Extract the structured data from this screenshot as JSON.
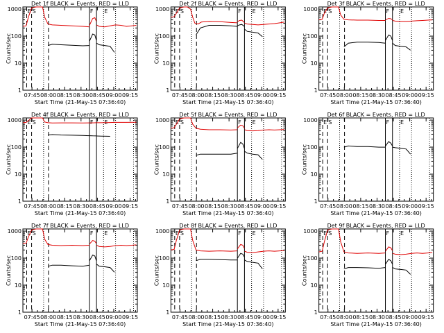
{
  "colors": {
    "events": "#000000",
    "lld": "#e00000",
    "axes": "#000000"
  },
  "common": {
    "xlabel": "Start Time (21-May-15 07:36:40)",
    "ylabel": "Counts/sec",
    "xticks": [
      "07:45",
      "08:00",
      "08:15",
      "08:30",
      "08:45",
      "09:00",
      "09:15"
    ],
    "yticks": [
      "1",
      "10",
      "100",
      "1000"
    ],
    "yscale": "log",
    "ylim": [
      1,
      1200
    ],
    "xlim_minutes_after_0736": [
      0,
      105
    ],
    "markers": [
      {
        "label": "E",
        "minute": 3.5,
        "style": "dashed"
      },
      {
        "label": "S",
        "minute": 8.0,
        "style": "dashed"
      },
      {
        "label": "",
        "minute": 19.0,
        "style": "dotted"
      },
      {
        "label": "",
        "minute": 23.5,
        "style": "dashed"
      },
      {
        "label": "F",
        "minute": 61.0,
        "style": "solid"
      },
      {
        "label": "",
        "minute": 67.5,
        "style": "solid"
      },
      {
        "label": "E",
        "minute": 74.0,
        "style": "dotted"
      },
      {
        "label": "",
        "minute": 85.0,
        "style": "dotted"
      },
      {
        "label": "",
        "minute": 101.5,
        "style": "dotted"
      }
    ]
  },
  "chart_data": [
    {
      "type": "line",
      "title": "Det 1f BLACK = Events, RED = LLD",
      "series": [
        {
          "name": "Events",
          "x": [
            20.5,
            23,
            27,
            35,
            45,
            55,
            60.9
          ],
          "y": [
            null,
            45,
            50,
            48,
            46,
            44,
            45
          ]
        },
        {
          "name": "Events",
          "x": [
            61.1,
            64,
            66,
            67.4
          ],
          "y": [
            65,
            120,
            110,
            70
          ]
        },
        {
          "name": "Events",
          "x": [
            67.6,
            70,
            75,
            80,
            84
          ],
          "y": [
            55,
            48,
            45,
            42,
            25
          ]
        },
        {
          "name": "LLD",
          "x": [
            0,
            3,
            5,
            8,
            12,
            15,
            18,
            20,
            23,
            27,
            35,
            45,
            55,
            60.9
          ],
          "y": [
            230,
            240,
            500,
            1100,
            1200,
            1200,
            1200,
            500,
            280,
            260,
            250,
            240,
            230,
            220
          ]
        },
        {
          "name": "LLD",
          "x": [
            61.1,
            64,
            66,
            67.4
          ],
          "y": [
            250,
            450,
            480,
            350
          ]
        },
        {
          "name": "LLD",
          "x": [
            67.6,
            70,
            75,
            80,
            85,
            90,
            95,
            100,
            104
          ],
          "y": [
            260,
            230,
            220,
            240,
            260,
            250,
            230,
            240,
            250
          ]
        }
      ]
    },
    {
      "type": "line",
      "title": "Det 2f BLACK = Events, RED = LLD",
      "series": [
        {
          "name": "Events",
          "x": [
            20,
            23,
            27,
            35,
            45,
            55,
            60.9
          ],
          "y": [
            null,
            110,
            200,
            250,
            250,
            240,
            230
          ]
        },
        {
          "name": "Events",
          "x": [
            61.1,
            63,
            65,
            67.4
          ],
          "y": [
            240,
            260,
            270,
            230
          ]
        },
        {
          "name": "Events",
          "x": [
            67.6,
            70,
            75,
            80,
            84
          ],
          "y": [
            180,
            150,
            140,
            130,
            95
          ]
        },
        {
          "name": "LLD",
          "x": [
            0,
            3,
            5,
            8,
            12,
            15,
            18,
            20,
            22,
            25,
            28,
            35,
            45,
            55,
            60.9
          ],
          "y": [
            500,
            520,
            700,
            1100,
            1200,
            1200,
            1000,
            500,
            300,
            280,
            330,
            350,
            340,
            320,
            310
          ]
        },
        {
          "name": "LLD",
          "x": [
            61.1,
            63,
            65,
            67.4
          ],
          "y": [
            340,
            380,
            390,
            320
          ]
        },
        {
          "name": "LLD",
          "x": [
            67.6,
            70,
            75,
            80,
            85,
            90,
            95,
            100,
            104
          ],
          "y": [
            300,
            280,
            270,
            260,
            270,
            280,
            290,
            310,
            330
          ]
        }
      ]
    },
    {
      "type": "line",
      "title": "Det 3f BLACK = Events, RED = LLD",
      "series": [
        {
          "name": "Events",
          "x": [
            21,
            23,
            27,
            35,
            45,
            55,
            60.9
          ],
          "y": [
            null,
            40,
            55,
            60,
            60,
            58,
            55
          ]
        },
        {
          "name": "Events",
          "x": [
            61.1,
            64,
            66,
            67.4
          ],
          "y": [
            70,
            110,
            100,
            70
          ]
        },
        {
          "name": "Events",
          "x": [
            67.6,
            70,
            75,
            80,
            84
          ],
          "y": [
            55,
            45,
            42,
            40,
            30
          ]
        },
        {
          "name": "LLD",
          "x": [
            0,
            3,
            5,
            8,
            12,
            15,
            18,
            20,
            23,
            27,
            35,
            45,
            55,
            60.9
          ],
          "y": [
            400,
            420,
            700,
            1100,
            1200,
            1200,
            1200,
            600,
            420,
            400,
            390,
            390,
            380,
            380
          ]
        },
        {
          "name": "LLD",
          "x": [
            61.1,
            64,
            66,
            67.4
          ],
          "y": [
            400,
            450,
            440,
            400
          ]
        },
        {
          "name": "LLD",
          "x": [
            67.6,
            70,
            75,
            80,
            85,
            90,
            95,
            100,
            104
          ],
          "y": [
            380,
            360,
            350,
            350,
            360,
            370,
            380,
            390,
            400
          ]
        }
      ]
    },
    {
      "type": "line",
      "title": "Det 4f BLACK = Events, RED = LLD",
      "series": [
        {
          "name": "Events",
          "x": [
            21,
            23,
            27,
            35,
            45,
            55,
            60.9
          ],
          "y": [
            null,
            280,
            290,
            280,
            275,
            270,
            265
          ]
        },
        {
          "name": "Events",
          "x": [
            61.1,
            64,
            67.4
          ],
          "y": [
            265,
            262,
            260
          ]
        },
        {
          "name": "Events",
          "x": [
            67.6,
            72,
            77,
            80
          ],
          "y": [
            258,
            255,
            252,
            250
          ]
        },
        {
          "name": "LLD",
          "x": [
            0,
            3,
            5,
            8,
            12,
            15,
            18,
            20,
            23,
            27,
            35,
            45,
            55,
            60.9
          ],
          "y": [
            800,
            820,
            950,
            1200,
            1200,
            1200,
            1200,
            850,
            800,
            780,
            790,
            790,
            780,
            790
          ]
        },
        {
          "name": "LLD",
          "x": [
            61.1,
            64,
            67.4
          ],
          "y": [
            790,
            790,
            800
          ]
        },
        {
          "name": "LLD",
          "x": [
            67.6,
            72,
            77,
            85,
            95,
            104
          ],
          "y": [
            800,
            800,
            810,
            820,
            820,
            830
          ]
        }
      ]
    },
    {
      "type": "line",
      "title": "Det 5f BLACK = Events, RED = LLD",
      "series": [
        {
          "name": "Events",
          "x": [
            21,
            23,
            27,
            35,
            45,
            55,
            60.9
          ],
          "y": [
            null,
            50,
            55,
            55,
            55,
            55,
            60
          ]
        },
        {
          "name": "Events",
          "x": [
            61.1,
            64,
            66,
            67.4
          ],
          "y": [
            90,
            150,
            130,
            90
          ]
        },
        {
          "name": "Events",
          "x": [
            67.6,
            70,
            75,
            80,
            84
          ],
          "y": [
            70,
            60,
            55,
            52,
            35
          ]
        },
        {
          "name": "LLD",
          "x": [
            0,
            3,
            5,
            8,
            12,
            15,
            18,
            20,
            23,
            27,
            35,
            45,
            55,
            60.9
          ],
          "y": [
            500,
            520,
            700,
            1100,
            1200,
            1200,
            1200,
            700,
            500,
            460,
            440,
            440,
            430,
            440
          ]
        },
        {
          "name": "LLD",
          "x": [
            61.1,
            64,
            66,
            67.4
          ],
          "y": [
            520,
            650,
            620,
            500
          ]
        },
        {
          "name": "LLD",
          "x": [
            67.6,
            70,
            75,
            80,
            85,
            90,
            95,
            100,
            104
          ],
          "y": [
            440,
            410,
            400,
            410,
            430,
            440,
            430,
            440,
            450
          ]
        }
      ]
    },
    {
      "type": "line",
      "title": "Det 6f BLACK = Events, RED = LLD",
      "series": [
        {
          "name": "Events",
          "x": [
            21,
            23,
            27,
            35,
            45,
            55,
            60.9
          ],
          "y": [
            null,
            100,
            110,
            105,
            105,
            100,
            100
          ]
        },
        {
          "name": "Events",
          "x": [
            61.1,
            64,
            66,
            67.4
          ],
          "y": [
            110,
            160,
            140,
            110
          ]
        },
        {
          "name": "Events",
          "x": [
            67.6,
            70,
            75,
            80,
            84
          ],
          "y": [
            100,
            95,
            90,
            85,
            55
          ]
        }
      ]
    },
    {
      "type": "line",
      "title": "Det 7f BLACK = Events, RED = LLD",
      "series": [
        {
          "name": "Events",
          "x": [
            21,
            23,
            27,
            35,
            45,
            55,
            60.9
          ],
          "y": [
            null,
            50,
            55,
            55,
            52,
            50,
            55
          ]
        },
        {
          "name": "Events",
          "x": [
            61.1,
            64,
            66,
            67.4
          ],
          "y": [
            80,
            130,
            120,
            80
          ]
        },
        {
          "name": "Events",
          "x": [
            67.6,
            70,
            75,
            80,
            84
          ],
          "y": [
            60,
            50,
            48,
            45,
            30
          ]
        },
        {
          "name": "LLD",
          "x": [
            0,
            3,
            5,
            8,
            12,
            15,
            18,
            20,
            23,
            27,
            35,
            45,
            55,
            60.9
          ],
          "y": [
            350,
            360,
            600,
            1100,
            1200,
            1200,
            1200,
            500,
            320,
            300,
            290,
            300,
            290,
            300
          ]
        },
        {
          "name": "LLD",
          "x": [
            61.1,
            64,
            66,
            67.4
          ],
          "y": [
            330,
            450,
            420,
            350
          ]
        },
        {
          "name": "LLD",
          "x": [
            67.6,
            70,
            75,
            80,
            85,
            90,
            95,
            100,
            104
          ],
          "y": [
            300,
            270,
            260,
            270,
            290,
            300,
            290,
            300,
            310
          ]
        }
      ]
    },
    {
      "type": "line",
      "title": "Det 8f BLACK = Events, RED = LLD",
      "series": [
        {
          "name": "Events",
          "x": [
            21,
            23,
            27,
            35,
            45,
            55,
            60.9
          ],
          "y": [
            null,
            80,
            90,
            90,
            88,
            85,
            85
          ]
        },
        {
          "name": "Events",
          "x": [
            61.1,
            64,
            66,
            67.4
          ],
          "y": [
            100,
            150,
            140,
            110
          ]
        },
        {
          "name": "Events",
          "x": [
            67.6,
            70,
            75,
            80,
            84
          ],
          "y": [
            85,
            75,
            70,
            65,
            40
          ]
        },
        {
          "name": "LLD",
          "x": [
            0,
            3,
            5,
            8,
            12,
            15,
            18,
            20,
            23,
            27,
            35,
            45,
            55,
            60.9
          ],
          "y": [
            200,
            210,
            450,
            1100,
            1200,
            1200,
            1200,
            450,
            200,
            185,
            180,
            185,
            180,
            185
          ]
        },
        {
          "name": "LLD",
          "x": [
            61.1,
            64,
            66,
            67.4
          ],
          "y": [
            220,
            320,
            300,
            230
          ]
        },
        {
          "name": "LLD",
          "x": [
            67.6,
            70,
            75,
            80,
            85,
            90,
            95,
            100,
            104
          ],
          "y": [
            180,
            165,
            160,
            170,
            180,
            185,
            180,
            185,
            190
          ]
        }
      ]
    },
    {
      "type": "line",
      "title": "Det 9f BLACK = Events, RED = LLD",
      "series": [
        {
          "name": "Events",
          "x": [
            21,
            23,
            27,
            35,
            45,
            55,
            60.9
          ],
          "y": [
            null,
            40,
            45,
            45,
            44,
            42,
            45
          ]
        },
        {
          "name": "Events",
          "x": [
            61.1,
            64,
            66,
            67.4
          ],
          "y": [
            60,
            90,
            80,
            60
          ]
        },
        {
          "name": "Events",
          "x": [
            67.6,
            70,
            75,
            80,
            84
          ],
          "y": [
            45,
            40,
            38,
            36,
            25
          ]
        },
        {
          "name": "LLD",
          "x": [
            0,
            3,
            5,
            8,
            12,
            15,
            18,
            20,
            23,
            27,
            35,
            45,
            55,
            60.9
          ],
          "y": [
            170,
            180,
            400,
            1100,
            1200,
            1200,
            1200,
            400,
            170,
            155,
            150,
            155,
            150,
            155
          ]
        },
        {
          "name": "LLD",
          "x": [
            61.1,
            64,
            66,
            67.4
          ],
          "y": [
            180,
            260,
            240,
            190
          ]
        },
        {
          "name": "LLD",
          "x": [
            67.6,
            70,
            75,
            80,
            85,
            90,
            95,
            100,
            104
          ],
          "y": [
            150,
            140,
            135,
            140,
            150,
            155,
            150,
            155,
            160
          ]
        }
      ]
    }
  ]
}
